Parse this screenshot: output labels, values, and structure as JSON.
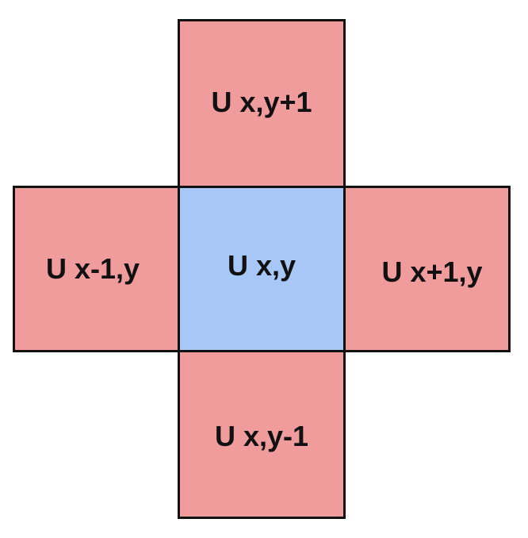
{
  "colors": {
    "neighbor_fill": "#f09c9c",
    "center_fill": "#a7c8f7",
    "border": "#111111"
  },
  "cells": {
    "top": "U x,y+1",
    "left": "U x-1,y",
    "center": "U x,y",
    "right": "U x+1,y",
    "bottom": "U x,y-1"
  }
}
